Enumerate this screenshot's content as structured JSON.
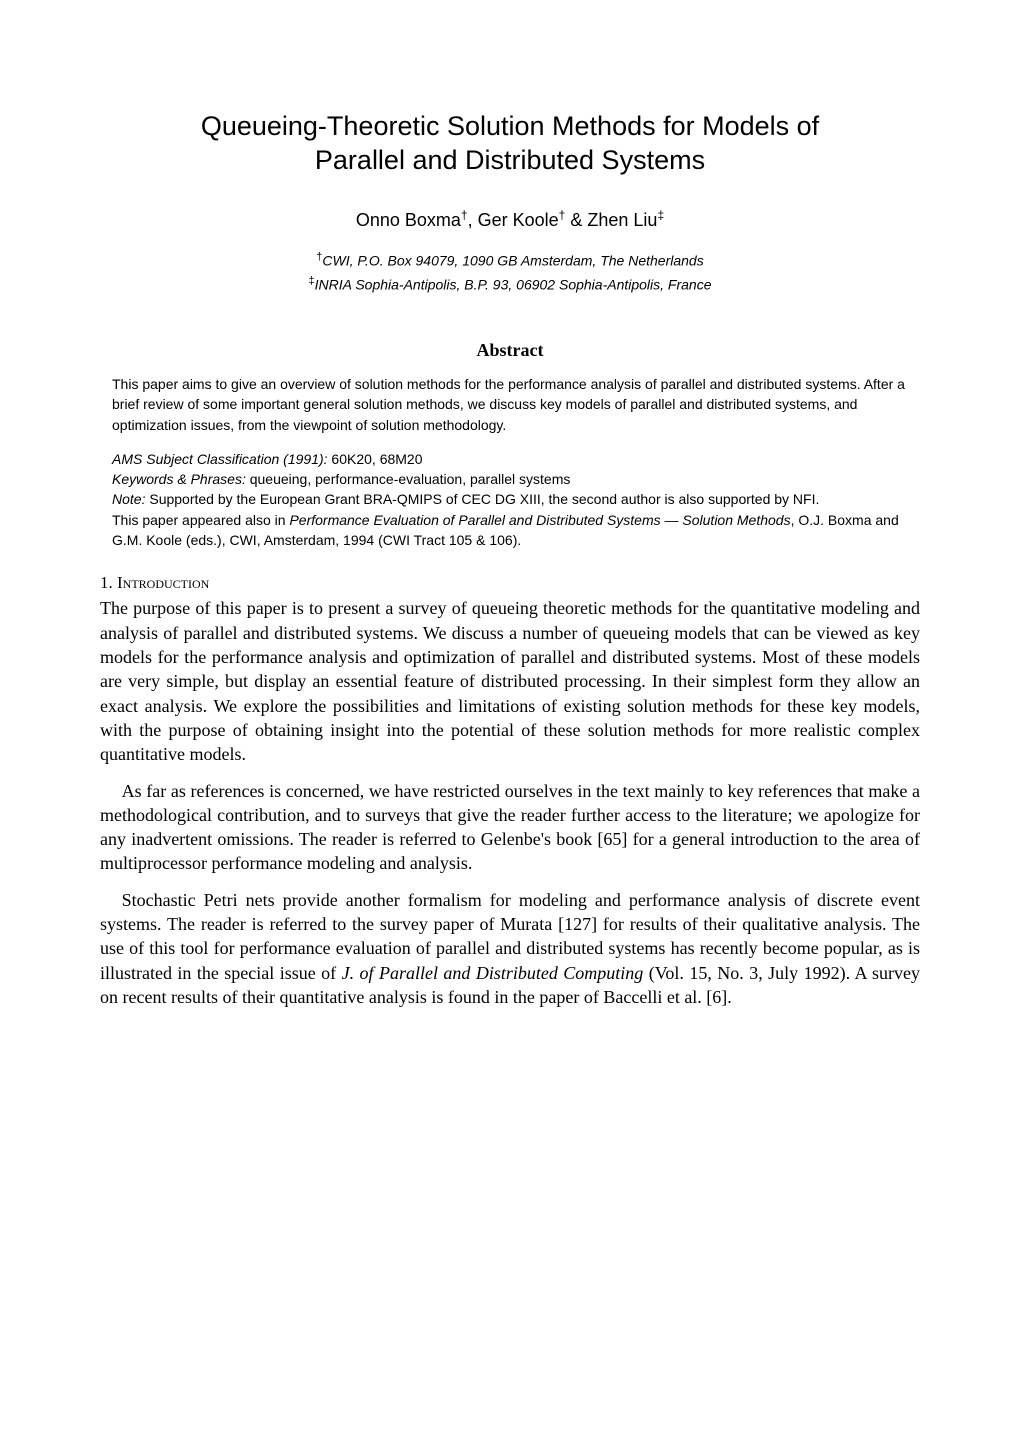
{
  "title_line1": "Queueing-Theoretic Solution Methods for Models of",
  "title_line2": "Parallel and Distributed Systems",
  "author1": "Onno Boxma",
  "author2": "Ger Koole",
  "author3": "Zhen Liu",
  "dagger": "†",
  "ddagger": "‡",
  "amp": " & ",
  "comma_sp": ", ",
  "affil1": "CWI, P.O. Box 94079, 1090 GB Amsterdam, The Netherlands",
  "affil2": "INRIA Sophia-Antipolis, B.P. 93, 06902 Sophia-Antipolis, France",
  "abstract_heading": "Abstract",
  "abstract_text": "This paper aims to give an overview of solution methods for the performance analysis of parallel and distributed systems. After a brief review of some important general solution methods, we discuss key models of parallel and distributed systems, and optimization issues, from the viewpoint of solution methodology.",
  "ams_label": "AMS Subject Classification (1991):",
  "ams_value": " 60K20, 68M20",
  "keywords_label": "Keywords & Phrases:",
  "keywords_value": " queueing, performance-evaluation, parallel systems",
  "note_label": "Note:",
  "note_value": " Supported by the European Grant BRA-QMIPS of CEC DG XIII, the second author is also supported by NFI.",
  "appeared_pre": "This paper appeared also in ",
  "appeared_ital": "Performance Evaluation of Parallel and Distributed Systems — Solution Methods",
  "appeared_post": ", O.J. Boxma and G.M. Koole (eds.), CWI, Amsterdam, 1994 (CWI Tract 105 & 106).",
  "section_num": "1. ",
  "section_title": "Introduction",
  "p1": "The purpose of this paper is to present a survey of queueing theoretic methods for the quantitative modeling and analysis of parallel and distributed systems. We discuss a number of queueing models that can be viewed as key models for the performance analysis and optimization of parallel and distributed systems. Most of these models are very simple, but display an essential feature of distributed processing. In their simplest form they allow an exact analysis. We explore the possibilities and limitations of existing solution methods for these key models, with the purpose of obtaining insight into the potential of these solution methods for more realistic complex quantitative models.",
  "p2": "As far as references is concerned, we have restricted ourselves in the text mainly to key references that make a methodological contribution, and to surveys that give the reader further access to the literature; we apologize for any inadvertent omissions. The reader is referred to Gelenbe's book [65] for a general introduction to the area of multiprocessor performance modeling and analysis.",
  "p3_pre": "Stochastic Petri nets provide another formalism for modeling and performance analysis of discrete event systems. The reader is referred to the survey paper of Murata [127] for results of their qualitative analysis. The use of this tool for performance evaluation of parallel and distributed systems has recently become popular, as is illustrated in the special issue of ",
  "p3_ital": "J. of Parallel and Distributed Computing",
  "p3_post": " (Vol. 15, No. 3, July 1992). A survey on recent results of their quantitative analysis is found in the paper of Baccelli et al. [6]."
}
